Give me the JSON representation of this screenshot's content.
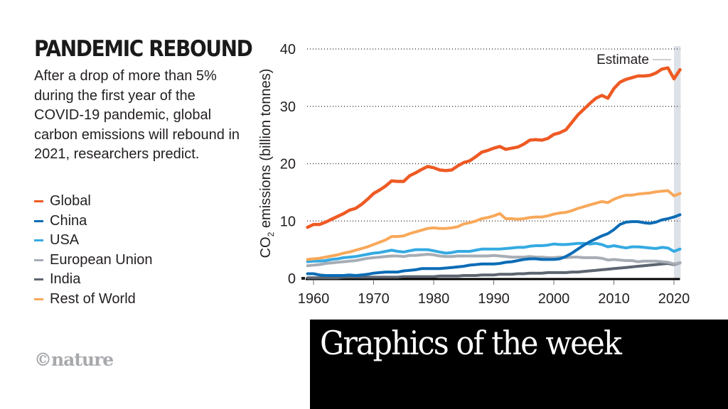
{
  "header": {
    "title": "PANDEMIC REBOUND",
    "description": "After a drop of more than 5% during the first year of the COVID-19 pandemic, global carbon emissions will rebound in 2021, researchers predict."
  },
  "legend": [
    {
      "label": "Global",
      "color": "#ee5a24"
    },
    {
      "label": "China",
      "color": "#0b6cb6"
    },
    {
      "label": "USA",
      "color": "#35aae2"
    },
    {
      "label": "European Union",
      "color": "#a7adb5"
    },
    {
      "label": "India",
      "color": "#5d6570"
    },
    {
      "label": "Rest of World",
      "color": "#f8a85a"
    }
  ],
  "logo": "©nature",
  "banner": {
    "text": "Graphics of the week"
  },
  "chart_data": {
    "type": "line",
    "title": "PANDEMIC REBOUND",
    "xlabel": "",
    "ylabel": "CO₂ emissions (billion tonnes)",
    "ylabel_main": "CO",
    "ylabel_sub": "2",
    "ylabel_rest": " emissions (billion tonnes)",
    "xlim": [
      1959,
      2021
    ],
    "ylim": [
      0,
      40
    ],
    "yticks": [
      0,
      10,
      20,
      30,
      40
    ],
    "xticks": [
      1960,
      1970,
      1980,
      1990,
      2000,
      2010,
      2020
    ],
    "grid": "horizontal-dotted",
    "annotation": {
      "label": "Estimate",
      "x_start": 2020,
      "x_end": 2021
    },
    "legend_position": "left",
    "x": [
      1959,
      1960,
      1961,
      1962,
      1963,
      1964,
      1965,
      1966,
      1967,
      1968,
      1969,
      1970,
      1971,
      1972,
      1973,
      1974,
      1975,
      1976,
      1977,
      1978,
      1979,
      1980,
      1981,
      1982,
      1983,
      1984,
      1985,
      1986,
      1987,
      1988,
      1989,
      1990,
      1991,
      1992,
      1993,
      1994,
      1995,
      1996,
      1997,
      1998,
      1999,
      2000,
      2001,
      2002,
      2003,
      2004,
      2005,
      2006,
      2007,
      2008,
      2009,
      2010,
      2011,
      2012,
      2013,
      2014,
      2015,
      2016,
      2017,
      2018,
      2019,
      2020,
      2021
    ],
    "series": [
      {
        "name": "Global",
        "color": "#ee5a24",
        "values": [
          8.9,
          9.4,
          9.4,
          9.8,
          10.3,
          10.8,
          11.3,
          11.9,
          12.2,
          12.9,
          13.8,
          14.8,
          15.4,
          16.1,
          17.0,
          16.9,
          16.9,
          17.9,
          18.4,
          19.0,
          19.5,
          19.3,
          18.9,
          18.8,
          18.9,
          19.6,
          20.2,
          20.5,
          21.2,
          22.0,
          22.3,
          22.7,
          23.0,
          22.5,
          22.7,
          22.9,
          23.4,
          24.1,
          24.2,
          24.1,
          24.4,
          25.1,
          25.4,
          25.9,
          27.2,
          28.5,
          29.5,
          30.5,
          31.4,
          31.9,
          31.4,
          33.1,
          34.2,
          34.7,
          35.0,
          35.3,
          35.3,
          35.4,
          35.8,
          36.5,
          36.7,
          34.8,
          36.4
        ]
      },
      {
        "name": "China",
        "color": "#0b6cb6",
        "values": [
          0.8,
          0.8,
          0.6,
          0.5,
          0.5,
          0.5,
          0.5,
          0.6,
          0.5,
          0.6,
          0.7,
          0.9,
          1.0,
          1.1,
          1.1,
          1.1,
          1.3,
          1.4,
          1.5,
          1.7,
          1.7,
          1.7,
          1.7,
          1.8,
          1.9,
          2.0,
          2.1,
          2.3,
          2.4,
          2.5,
          2.5,
          2.5,
          2.6,
          2.8,
          2.9,
          3.1,
          3.3,
          3.4,
          3.4,
          3.3,
          3.3,
          3.3,
          3.4,
          3.8,
          4.4,
          5.1,
          5.8,
          6.4,
          6.9,
          7.4,
          7.8,
          8.5,
          9.4,
          9.8,
          9.9,
          9.9,
          9.7,
          9.6,
          9.8,
          10.2,
          10.4,
          10.7,
          11.1
        ]
      },
      {
        "name": "USA",
        "color": "#35aae2",
        "values": [
          2.9,
          3.0,
          3.0,
          3.1,
          3.3,
          3.4,
          3.6,
          3.7,
          3.8,
          4.0,
          4.2,
          4.4,
          4.5,
          4.7,
          4.9,
          4.7,
          4.6,
          4.8,
          5.0,
          5.0,
          5.0,
          4.8,
          4.6,
          4.4,
          4.5,
          4.7,
          4.7,
          4.7,
          4.9,
          5.1,
          5.1,
          5.1,
          5.1,
          5.2,
          5.3,
          5.4,
          5.4,
          5.6,
          5.7,
          5.7,
          5.8,
          6.0,
          5.9,
          5.9,
          6.0,
          6.1,
          6.1,
          6.0,
          6.1,
          5.9,
          5.5,
          5.7,
          5.5,
          5.3,
          5.5,
          5.5,
          5.4,
          5.3,
          5.2,
          5.4,
          5.3,
          4.7,
          5.1
        ]
      },
      {
        "name": "European Union",
        "color": "#a7adb5",
        "values": [
          2.2,
          2.3,
          2.4,
          2.6,
          2.7,
          2.8,
          2.9,
          3.0,
          3.1,
          3.3,
          3.5,
          3.6,
          3.7,
          3.8,
          3.9,
          3.9,
          3.8,
          4.0,
          4.0,
          4.1,
          4.2,
          4.1,
          3.9,
          3.8,
          3.8,
          3.9,
          3.9,
          3.9,
          3.9,
          3.9,
          3.9,
          4.0,
          3.9,
          3.8,
          3.7,
          3.7,
          3.7,
          3.8,
          3.7,
          3.7,
          3.6,
          3.6,
          3.7,
          3.6,
          3.7,
          3.7,
          3.6,
          3.6,
          3.6,
          3.5,
          3.2,
          3.3,
          3.2,
          3.1,
          3.1,
          2.9,
          3.0,
          3.0,
          3.0,
          2.9,
          2.8,
          2.5,
          2.7
        ]
      },
      {
        "name": "India",
        "color": "#5d6570",
        "values": [
          0.1,
          0.1,
          0.1,
          0.1,
          0.1,
          0.1,
          0.2,
          0.2,
          0.2,
          0.2,
          0.2,
          0.2,
          0.2,
          0.2,
          0.2,
          0.2,
          0.3,
          0.3,
          0.3,
          0.3,
          0.3,
          0.3,
          0.4,
          0.4,
          0.4,
          0.4,
          0.5,
          0.5,
          0.5,
          0.6,
          0.6,
          0.6,
          0.7,
          0.7,
          0.7,
          0.8,
          0.8,
          0.9,
          0.9,
          0.9,
          1.0,
          1.0,
          1.0,
          1.0,
          1.1,
          1.1,
          1.2,
          1.3,
          1.4,
          1.5,
          1.6,
          1.7,
          1.8,
          1.9,
          2.0,
          2.1,
          2.2,
          2.3,
          2.4,
          2.5,
          2.6,
          2.4,
          2.7
        ]
      },
      {
        "name": "Rest of World",
        "color": "#f8a85a",
        "values": [
          3.3,
          3.4,
          3.5,
          3.7,
          3.9,
          4.1,
          4.4,
          4.6,
          4.9,
          5.2,
          5.5,
          5.9,
          6.3,
          6.7,
          7.3,
          7.3,
          7.4,
          7.8,
          8.1,
          8.4,
          8.7,
          8.8,
          8.7,
          8.7,
          8.8,
          9.0,
          9.5,
          9.7,
          10.0,
          10.4,
          10.6,
          10.9,
          11.3,
          10.4,
          10.4,
          10.3,
          10.4,
          10.6,
          10.7,
          10.7,
          10.9,
          11.2,
          11.4,
          11.5,
          11.8,
          12.2,
          12.5,
          12.8,
          13.1,
          13.4,
          13.2,
          13.8,
          14.2,
          14.5,
          14.5,
          14.7,
          14.8,
          14.9,
          15.1,
          15.2,
          15.3,
          14.4,
          14.8
        ]
      }
    ]
  }
}
